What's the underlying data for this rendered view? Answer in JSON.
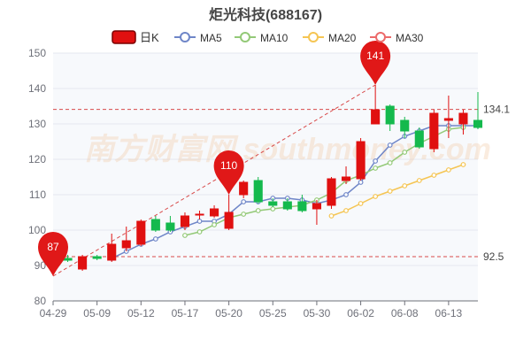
{
  "chart_data": {
    "type": "candlestick",
    "title": "炬光科技(688167)",
    "legend": [
      {
        "name": "日K",
        "color": "#e01010",
        "symbol": "rect"
      },
      {
        "name": "MA5",
        "color": "#6f86c8",
        "symbol": "circle"
      },
      {
        "name": "MA10",
        "color": "#93c977",
        "symbol": "circle"
      },
      {
        "name": "MA20",
        "color": "#f5c553",
        "symbol": "circle"
      },
      {
        "name": "MA30",
        "color": "#ec6a6a",
        "symbol": "circle"
      }
    ],
    "x_tick_labels": [
      "04-29",
      "05-09",
      "05-12",
      "05-17",
      "05-20",
      "05-25",
      "05-30",
      "06-02",
      "06-08",
      "06-13"
    ],
    "x_tick_index": [
      0,
      3,
      6,
      9,
      12,
      15,
      18,
      21,
      24,
      27
    ],
    "ylim": [
      80,
      150
    ],
    "y_ticks": [
      80,
      90,
      100,
      110,
      120,
      130,
      140,
      150
    ],
    "colors": {
      "up": "#e01010",
      "down": "#14b94d",
      "grid": "#e4e8ef",
      "axis": "#6e7079"
    },
    "candles": [
      {
        "o": 93,
        "c": 92.5,
        "h": 96,
        "l": 91.5
      },
      {
        "o": 92,
        "c": 91.5,
        "h": 93,
        "l": 91
      },
      {
        "o": 89,
        "c": 92.5,
        "h": 93,
        "l": 88.5
      },
      {
        "o": 92.5,
        "c": 92,
        "h": 93,
        "l": 91.5
      },
      {
        "o": 91.5,
        "c": 96,
        "h": 99,
        "l": 91
      },
      {
        "o": 95,
        "c": 97,
        "h": 101,
        "l": 94
      },
      {
        "o": 96,
        "c": 102.5,
        "h": 103,
        "l": 95.5
      },
      {
        "o": 103,
        "c": 100,
        "h": 104,
        "l": 99.5
      },
      {
        "o": 102,
        "c": 100,
        "h": 104,
        "l": 99.5
      },
      {
        "o": 101,
        "c": 104,
        "h": 105,
        "l": 100
      },
      {
        "o": 104.5,
        "c": 104.5,
        "h": 105.5,
        "l": 103
      },
      {
        "o": 104,
        "c": 106,
        "h": 107,
        "l": 103.5
      },
      {
        "o": 100.5,
        "c": 105,
        "h": 110,
        "l": 100
      },
      {
        "o": 110,
        "c": 113.5,
        "h": 114,
        "l": 109
      },
      {
        "o": 114,
        "c": 108,
        "h": 115,
        "l": 107.5
      },
      {
        "o": 108,
        "c": 107,
        "h": 109,
        "l": 106.5
      },
      {
        "o": 108,
        "c": 106,
        "h": 109,
        "l": 105.5
      },
      {
        "o": 108,
        "c": 105.5,
        "h": 110,
        "l": 105
      },
      {
        "o": 106,
        "c": 107.5,
        "h": 108.5,
        "l": 101.5
      },
      {
        "o": 107,
        "c": 114.5,
        "h": 115,
        "l": 106
      },
      {
        "o": 114,
        "c": 115,
        "h": 118,
        "l": 113
      },
      {
        "o": 114.5,
        "c": 125,
        "h": 126,
        "l": 114
      },
      {
        "o": 130,
        "c": 134,
        "h": 141,
        "l": 130
      },
      {
        "o": 135,
        "c": 130,
        "h": 135.5,
        "l": 128
      },
      {
        "o": 131,
        "c": 128,
        "h": 132,
        "l": 126
      },
      {
        "o": 128,
        "c": 123.5,
        "h": 129,
        "l": 123
      },
      {
        "o": 123,
        "c": 133,
        "h": 134,
        "l": 122
      },
      {
        "o": 131,
        "c": 131.5,
        "h": 138,
        "l": 126
      },
      {
        "o": 130,
        "c": 133,
        "h": 134,
        "l": 127
      },
      {
        "o": 131,
        "c": 129,
        "h": 139,
        "l": 128.5
      }
    ],
    "series": [
      {
        "name": "MA5",
        "color": "#6f86c8",
        "start_index": 4,
        "values": [
          92,
          94,
          96,
          97.5,
          99.5,
          101,
          102.5,
          102.5,
          104.5,
          108,
          108,
          109,
          109,
          108.5,
          107.5,
          108.5,
          110,
          113.5,
          119.5,
          124,
          126.5,
          128,
          129.5,
          129.5,
          129.5,
          129.5
        ]
      },
      {
        "name": "MA10",
        "color": "#93c977",
        "start_index": 9,
        "values": [
          98.5,
          99.5,
          101.5,
          103.5,
          104.5,
          105.5,
          106,
          106.5,
          107,
          108.5,
          110.5,
          114,
          115.5,
          117.5,
          119,
          122,
          124.5,
          126.5,
          128.5,
          129
        ]
      },
      {
        "name": "MA20",
        "color": "#f5c553",
        "start_index": 19,
        "values": [
          104,
          105.5,
          107.5,
          109.5,
          111,
          112.5,
          114,
          115.5,
          117,
          118.5
        ]
      }
    ],
    "markers": [
      {
        "label": "87",
        "index": 0,
        "value": 87
      },
      {
        "label": "110",
        "index": 12,
        "value": 110
      },
      {
        "label": "141",
        "index": 22,
        "value": 141
      }
    ],
    "hlines": [
      {
        "label": "134.1",
        "value": 134.1
      },
      {
        "label": "92.5",
        "value": 92.5
      }
    ],
    "trendline": {
      "from_index": 0,
      "from_value": 87,
      "to_index": 22,
      "to_value": 141
    },
    "watermark": "南方财富网 southmoney.com"
  }
}
